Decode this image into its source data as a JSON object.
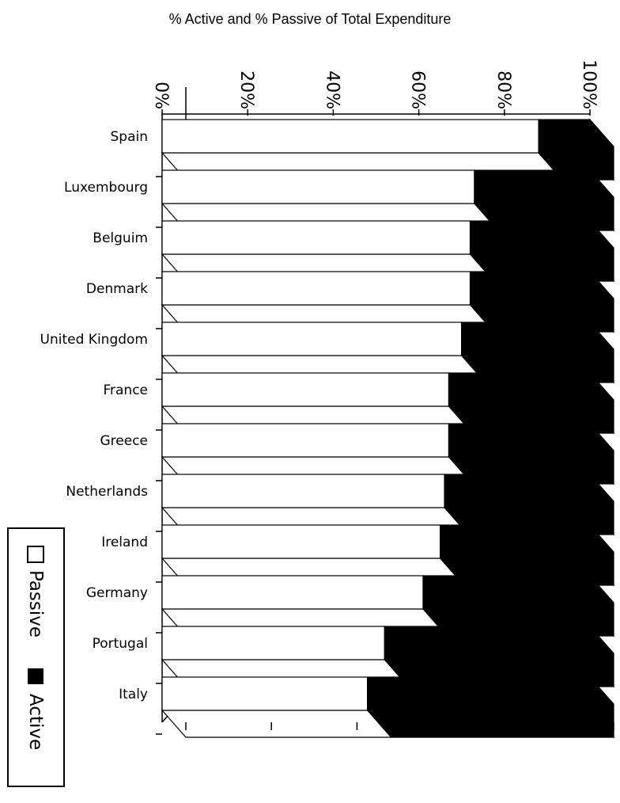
{
  "chart_data": {
    "type": "bar",
    "orientation": "horizontal",
    "stacked": true,
    "percent_stacked": true,
    "three_d": true,
    "title": "% Active and % Passive of Total Expenditure",
    "categories": [
      "Spain",
      "Luxembourg",
      "Belguim",
      "Denmark",
      "United Kingdom",
      "France",
      "Greece",
      "Netherlands",
      "Ireland",
      "Germany",
      "Portugal",
      "Italy"
    ],
    "series": [
      {
        "name": "Passive",
        "values": [
          88,
          73,
          72,
          72,
          70,
          67,
          67,
          66,
          65,
          61,
          52,
          48
        ]
      },
      {
        "name": "Active",
        "values": [
          12,
          27,
          28,
          28,
          30,
          33,
          33,
          34,
          35,
          39,
          48,
          52
        ]
      }
    ],
    "x_ticks": [
      "0%",
      "20%",
      "40%",
      "60%",
      "80%",
      "100%"
    ],
    "xlim": [
      0,
      100
    ],
    "legend_position": "left",
    "colors": {
      "Passive": "#ffffff",
      "Active": "#000000",
      "outline": "#000000"
    }
  },
  "legend": {
    "passive_label": "Passive",
    "active_label": "Active"
  }
}
